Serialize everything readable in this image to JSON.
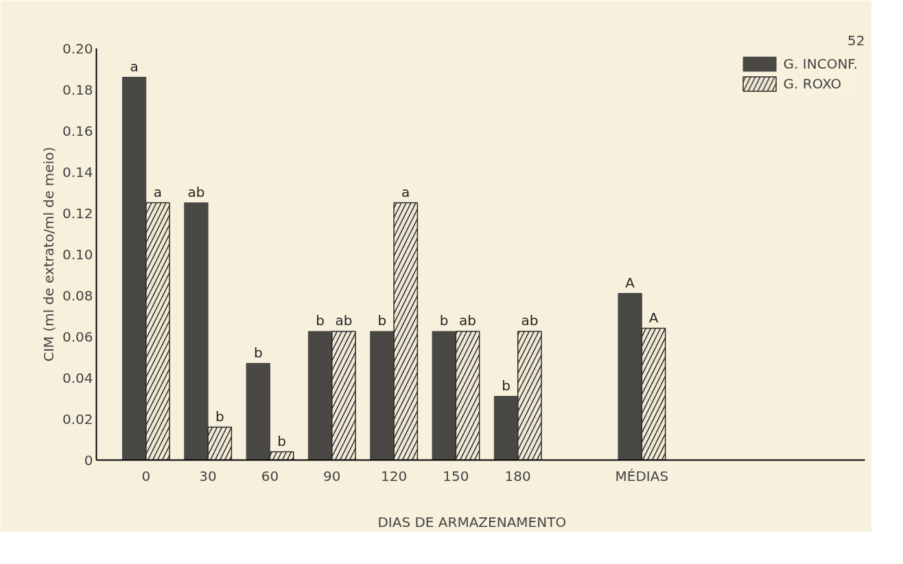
{
  "chart_data": {
    "type": "bar",
    "xlabel": "DIAS   DE   ARMAZENAMENTO",
    "ylabel": "CIM (ml de extrato/ml de meio)",
    "categories": [
      "0",
      "30",
      "60",
      "90",
      "120",
      "150",
      "180",
      null,
      "MÉDIAS"
    ],
    "series": [
      {
        "name": "G. INCONF.",
        "color": "#4a4845",
        "values": [
          0.186,
          0.125,
          0.047,
          0.0625,
          0.0625,
          0.0625,
          0.031,
          null,
          0.081
        ],
        "value_labels": [
          "a",
          "ab",
          "b",
          "b",
          "b",
          "b",
          "b",
          null,
          "A"
        ]
      },
      {
        "name": "G. ROXO",
        "color": "#2a2a2a",
        "values": [
          0.125,
          0.016,
          0.004,
          0.0625,
          0.125,
          0.0625,
          0.0625,
          null,
          0.064
        ],
        "value_labels": [
          "a",
          "b",
          "b",
          "ab",
          "a",
          "ab",
          "ab",
          null,
          "A"
        ]
      }
    ],
    "ylim": [
      0,
      0.2
    ],
    "yticks": [
      {
        "value": 0,
        "label": "0"
      },
      0.02,
      0.04,
      0.06,
      0.08,
      {
        "value": 0.1,
        "label": "0.10"
      },
      0.12,
      0.14,
      0.16,
      0.18,
      {
        "value": 0.2,
        "label": "0.20"
      }
    ],
    "grid": false,
    "legend": "top right",
    "annotations": [
      "52"
    ]
  }
}
